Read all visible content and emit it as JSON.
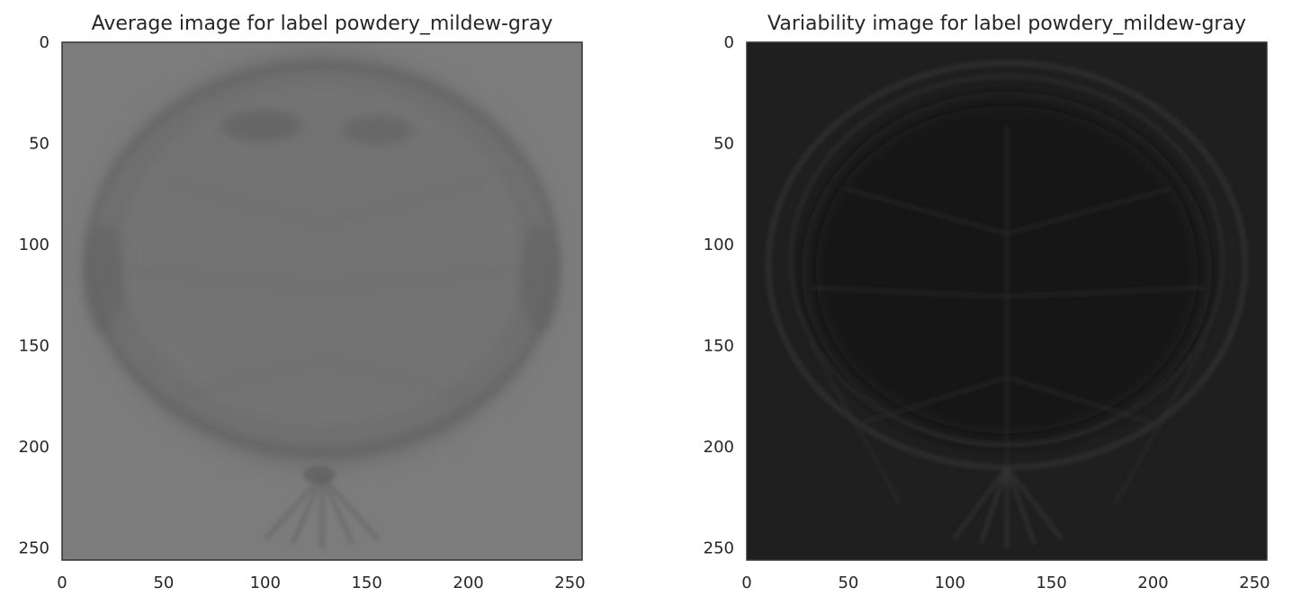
{
  "chart_data": [
    {
      "type": "heatmap",
      "title": "Average image for label powdery_mildew-gray",
      "xlim": [
        0,
        256
      ],
      "ylim": [
        256,
        0
      ],
      "x_ticks": [
        0,
        50,
        100,
        150,
        200,
        250
      ],
      "y_ticks": [
        0,
        50,
        100,
        150,
        200,
        250
      ],
      "colors": {
        "background": "#7c7c7c",
        "shadow": "#5e5e5e",
        "frame": "#333333"
      }
    },
    {
      "type": "heatmap",
      "title": "Variability image for label powdery_mildew-gray",
      "xlim": [
        0,
        256
      ],
      "ylim": [
        256,
        0
      ],
      "x_ticks": [
        0,
        50,
        100,
        150,
        200,
        250
      ],
      "y_ticks": [
        0,
        50,
        100,
        150,
        200,
        250
      ],
      "colors": {
        "background": "#1f1f1f",
        "shadow": "#141414",
        "highlight": "#3a3a3a",
        "frame": "#333333"
      }
    }
  ]
}
